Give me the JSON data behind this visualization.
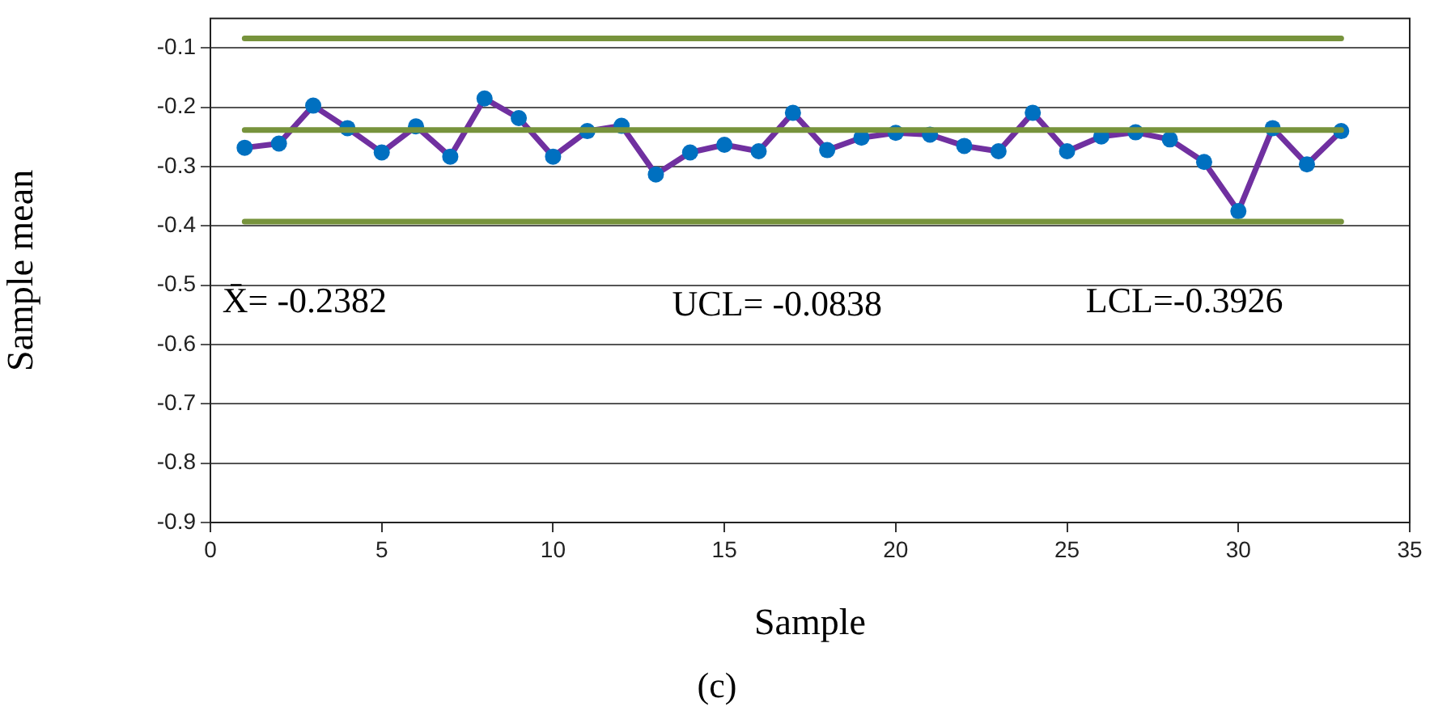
{
  "chart_data": {
    "type": "line",
    "xlabel": "Sample",
    "ylabel": "Sample mean",
    "x": [
      1,
      2,
      3,
      4,
      5,
      6,
      7,
      8,
      9,
      10,
      11,
      12,
      13,
      14,
      15,
      16,
      17,
      18,
      19,
      20,
      21,
      22,
      23,
      24,
      25,
      26,
      27,
      28,
      29,
      30,
      31,
      32,
      33
    ],
    "series": [
      {
        "marker": "none",
        "color": "#77933c",
        "values": [
          -0.0838,
          -0.0838,
          -0.0838,
          -0.0838,
          -0.0838,
          -0.0838,
          -0.0838,
          -0.0838,
          -0.0838,
          -0.0838,
          -0.0838,
          -0.0838,
          -0.0838,
          -0.0838,
          -0.0838,
          -0.0838,
          -0.0838,
          -0.0838,
          -0.0838,
          -0.0838,
          -0.0838,
          -0.0838,
          -0.0838,
          -0.0838,
          -0.0838,
          -0.0838,
          -0.0838,
          -0.0838,
          -0.0838,
          -0.0838,
          -0.0838,
          -0.0838,
          -0.0838
        ]
      },
      {
        "marker": "none",
        "color": "#77933c",
        "values": [
          -0.2382,
          -0.2382,
          -0.2382,
          -0.2382,
          -0.2382,
          -0.2382,
          -0.2382,
          -0.2382,
          -0.2382,
          -0.2382,
          -0.2382,
          -0.2382,
          -0.2382,
          -0.2382,
          -0.2382,
          -0.2382,
          -0.2382,
          -0.2382,
          -0.2382,
          -0.2382,
          -0.2382,
          -0.2382,
          -0.2382,
          -0.2382,
          -0.2382,
          -0.2382,
          -0.2382,
          -0.2382,
          -0.2382,
          -0.2382,
          -0.2382,
          -0.2382,
          -0.2382
        ]
      },
      {
        "marker": "none",
        "color": "#77933c",
        "values": [
          -0.3926,
          -0.3926,
          -0.3926,
          -0.3926,
          -0.3926,
          -0.3926,
          -0.3926,
          -0.3926,
          -0.3926,
          -0.3926,
          -0.3926,
          -0.3926,
          -0.3926,
          -0.3926,
          -0.3926,
          -0.3926,
          -0.3926,
          -0.3926,
          -0.3926,
          -0.3926,
          -0.3926,
          -0.3926,
          -0.3926,
          -0.3926,
          -0.3926,
          -0.3926,
          -0.3926,
          -0.3926,
          -0.3926,
          -0.3926,
          -0.3926,
          -0.3926,
          -0.3926
        ]
      },
      {
        "marker": "circle",
        "color": "#7030a0",
        "colors": [
          "#0070c0",
          "#0070c0",
          "#0070c0",
          "#0070c0",
          "#0070c0",
          "#0070c0",
          "#0070c0",
          "#0070c0",
          "#0070c0",
          "#0070c0",
          "#0070c0",
          "#0070c0",
          "#0070c0",
          "#0070c0",
          "#0070c0",
          "#0070c0",
          "#0070c0",
          "#0070c0",
          "#0070c0",
          "#0070c0",
          "#0070c0",
          "#0070c0",
          "#0070c0",
          "#0070c0",
          "#0070c0",
          "#0070c0",
          "#0070c0",
          "#0070c0",
          "#0070c0",
          "#0070c0",
          "#0070c0",
          "#0070c0",
          "#0070c0"
        ],
        "values": [
          -0.268,
          -0.261,
          -0.197,
          -0.235,
          -0.276,
          -0.232,
          -0.283,
          -0.185,
          -0.218,
          -0.283,
          -0.24,
          -0.231,
          -0.313,
          -0.276,
          -0.263,
          -0.274,
          -0.209,
          -0.272,
          -0.251,
          -0.243,
          -0.246,
          -0.265,
          -0.274,
          -0.209,
          -0.274,
          -0.249,
          -0.242,
          -0.254,
          -0.292,
          -0.375,
          -0.235,
          -0.296,
          -0.24
        ]
      }
    ],
    "xlim": [
      0,
      35
    ],
    "xticks": [
      0,
      5,
      10,
      15,
      20,
      25,
      30,
      35
    ],
    "ylim": [
      -0.9,
      -0.05
    ],
    "yticks": [
      -0.1,
      -0.2,
      -0.3,
      -0.4,
      -0.5,
      -0.6,
      -0.7,
      -0.8,
      -0.9
    ],
    "grid": "y",
    "legend": false,
    "annotations": [
      "X̄= -0.2382",
      "UCL= -0.0838",
      "LCL=-0.3926",
      "(c)"
    ]
  }
}
